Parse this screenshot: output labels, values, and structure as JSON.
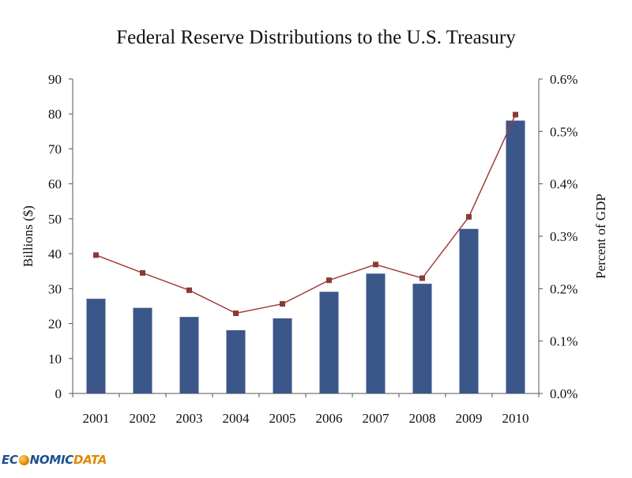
{
  "chart_data": {
    "type": "bar+line",
    "title": "Federal Reserve Distributions to the U.S. Treasury",
    "categories": [
      "2001",
      "2002",
      "2003",
      "2004",
      "2005",
      "2006",
      "2007",
      "2008",
      "2009",
      "2010"
    ],
    "series": [
      {
        "axis": "left",
        "kind": "bar",
        "color": "#3b5689",
        "values": [
          27.1,
          24.5,
          21.9,
          18.1,
          21.5,
          29.1,
          34.3,
          31.4,
          47.1,
          78.1
        ]
      },
      {
        "axis": "right",
        "kind": "line",
        "color": "#a33c3a",
        "marker_color": "#8b3a36",
        "values": [
          0.264,
          0.23,
          0.197,
          0.153,
          0.171,
          0.216,
          0.246,
          0.22,
          0.337,
          0.532
        ]
      }
    ],
    "ylabel": "Billions ($)",
    "ylabel_color": "#3b5689",
    "y2label": "Percent of GDP",
    "y2label_color": "#a33c3a",
    "ylim": [
      0,
      90
    ],
    "y_ticks": [
      "0",
      "10",
      "20",
      "30",
      "40",
      "50",
      "60",
      "70",
      "80",
      "90"
    ],
    "y2lim": [
      0,
      0.6
    ],
    "y2_ticks": [
      "0.0%",
      "0.1%",
      "0.2%",
      "0.3%",
      "0.4%",
      "0.5%",
      "0.6%"
    ],
    "grid": false,
    "legend": "none"
  },
  "logo": {
    "part1": "EC",
    "part2": "NOMIC",
    "part3": "DATA"
  }
}
